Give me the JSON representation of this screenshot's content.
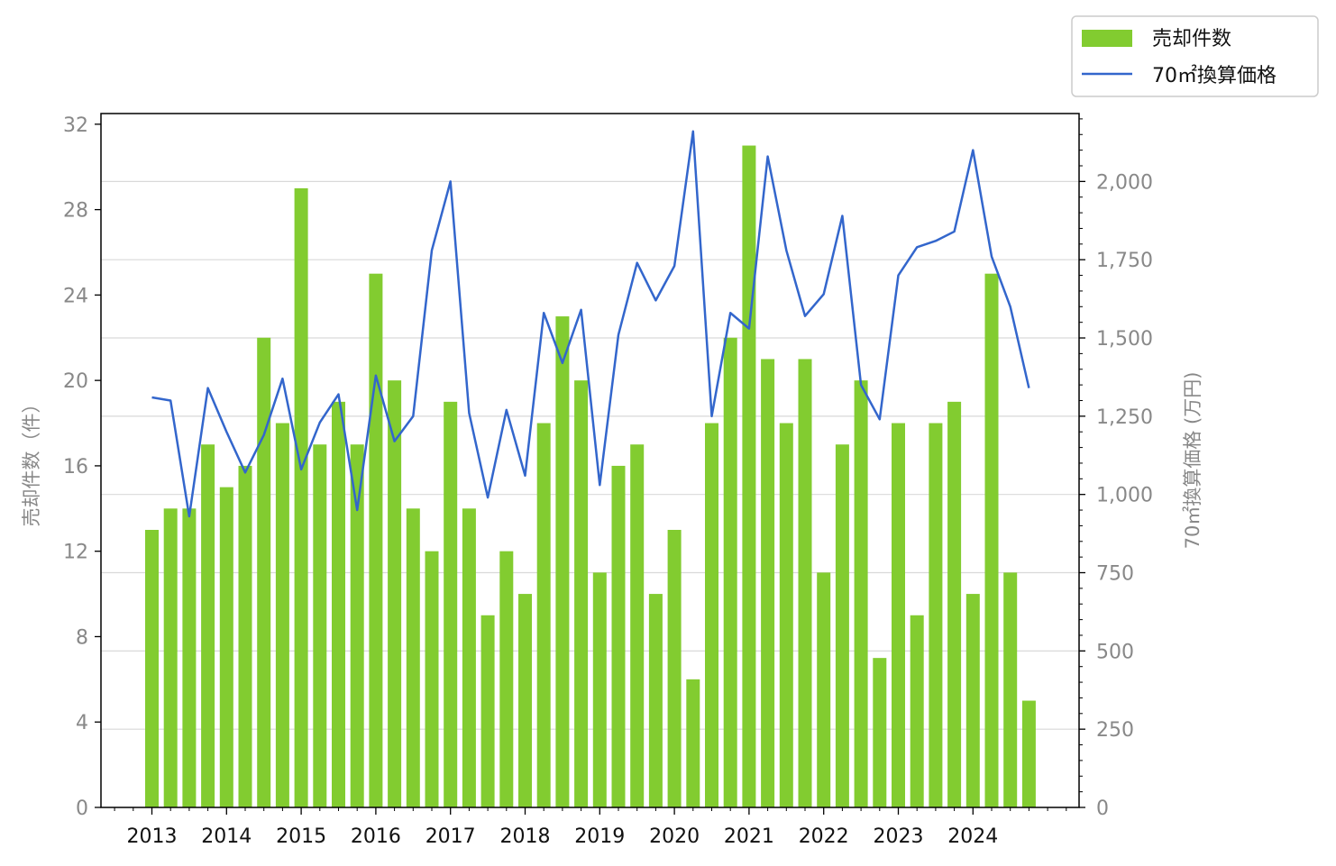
{
  "chart_data": {
    "type": "bar",
    "x_tick_labels": [
      "2013",
      "2014",
      "2015",
      "2016",
      "2017",
      "2018",
      "2019",
      "2020",
      "2021",
      "2022",
      "2023",
      "2024"
    ],
    "y_left_label": "売却件数（件）",
    "y_right_label": "70㎡換算価格 (万円)",
    "y_left_ticks": [
      "0",
      "4",
      "8",
      "12",
      "16",
      "20",
      "24",
      "28",
      "32"
    ],
    "y_right_ticks": [
      "0",
      "250",
      "500",
      "750",
      "1,000",
      "1,250",
      "1,500",
      "1,750",
      "2,000"
    ],
    "ylim_left": [
      0,
      32.5
    ],
    "ylim_right": [
      0,
      2217
    ],
    "grid": "horizontal (right axis)",
    "legend_position": "top-right, outside plot",
    "series": [
      {
        "name": "売却件数",
        "kind": "bar",
        "axis": "left",
        "color": "#82cc30",
        "values": [
          13,
          14,
          14,
          17,
          15,
          16,
          22,
          18,
          29,
          17,
          19,
          17,
          25,
          20,
          14,
          12,
          19,
          14,
          9,
          12,
          10,
          18,
          23,
          20,
          11,
          16,
          17,
          10,
          13,
          6,
          18,
          22,
          31,
          21,
          18,
          21,
          11,
          17,
          20,
          7,
          18,
          9,
          18,
          19,
          10,
          25,
          11,
          5
        ]
      },
      {
        "name": "70㎡換算価格",
        "kind": "line",
        "axis": "right",
        "color": "#3366cc",
        "values": [
          1310,
          1300,
          930,
          1340,
          1200,
          1070,
          1190,
          1370,
          1080,
          1230,
          1320,
          950,
          1380,
          1170,
          1250,
          1780,
          2000,
          1260,
          990,
          1270,
          1060,
          1580,
          1420,
          1590,
          1030,
          1510,
          1740,
          1620,
          1730,
          2160,
          1250,
          1580,
          1530,
          2080,
          1780,
          1570,
          1640,
          1890,
          1350,
          1240,
          1700,
          1790,
          1810,
          1840,
          2100,
          1760,
          1600,
          1340
        ]
      }
    ]
  }
}
